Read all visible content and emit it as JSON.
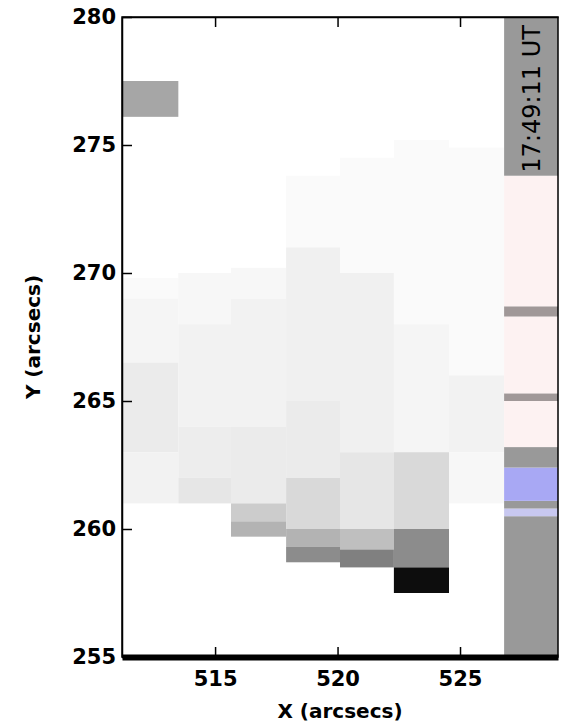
{
  "chart_data": {
    "type": "heatmap",
    "x_label": "X (arcsecs)",
    "y_label": "Y (arcsecs)",
    "xlim": [
      511.2,
      529
    ],
    "ylim": [
      255,
      280
    ],
    "xticks": [
      515,
      520,
      525
    ],
    "yticks": [
      255,
      260,
      265,
      270,
      275,
      280
    ],
    "annotations": [
      {
        "text": "17:49:11 UT"
      }
    ],
    "columns": [
      {
        "x0": 511.2,
        "x1": 513.5,
        "cells": [
          {
            "y0": 276.1,
            "y1": 277.5,
            "value": 0.65
          },
          {
            "y0": 269.0,
            "y1": 269.8,
            "value": 0.98
          },
          {
            "y0": 266.5,
            "y1": 269.0,
            "value": 0.96
          },
          {
            "y0": 263.0,
            "y1": 266.5,
            "value": 0.92
          },
          {
            "y0": 261.0,
            "y1": 263.0,
            "value": 0.95
          }
        ]
      },
      {
        "x0": 513.5,
        "x1": 515.65,
        "cells": [
          {
            "y0": 268.0,
            "y1": 270.0,
            "value": 0.97
          },
          {
            "y0": 264.0,
            "y1": 268.0,
            "value": 0.95
          },
          {
            "y0": 262.0,
            "y1": 264.0,
            "value": 0.93
          },
          {
            "y0": 261.0,
            "y1": 262.0,
            "value": 0.9
          }
        ]
      },
      {
        "x0": 515.65,
        "x1": 517.9,
        "cells": [
          {
            "y0": 269.0,
            "y1": 270.2,
            "value": 0.97
          },
          {
            "y0": 264.0,
            "y1": 269.0,
            "value": 0.95
          },
          {
            "y0": 261.0,
            "y1": 264.0,
            "value": 0.92
          },
          {
            "y0": 260.3,
            "y1": 261.0,
            "value": 0.8
          },
          {
            "y0": 259.7,
            "y1": 260.3,
            "value": 0.7
          }
        ]
      },
      {
        "x0": 517.9,
        "x1": 520.1,
        "cells": [
          {
            "y0": 271.0,
            "y1": 273.8,
            "value": 0.98
          },
          {
            "y0": 265.0,
            "y1": 271.0,
            "value": 0.94
          },
          {
            "y0": 262.0,
            "y1": 265.0,
            "value": 0.92
          },
          {
            "y0": 260.0,
            "y1": 262.0,
            "value": 0.85
          },
          {
            "y0": 259.3,
            "y1": 260.0,
            "value": 0.7
          },
          {
            "y0": 258.7,
            "y1": 259.3,
            "value": 0.55
          }
        ]
      },
      {
        "x0": 520.1,
        "x1": 522.3,
        "cells": [
          {
            "y0": 270.0,
            "y1": 274.5,
            "value": 0.98
          },
          {
            "y0": 263.0,
            "y1": 270.0,
            "value": 0.94
          },
          {
            "y0": 260.0,
            "y1": 263.0,
            "value": 0.9
          },
          {
            "y0": 259.2,
            "y1": 260.0,
            "value": 0.75
          },
          {
            "y0": 258.5,
            "y1": 259.2,
            "value": 0.5
          }
        ]
      },
      {
        "x0": 522.3,
        "x1": 524.55,
        "cells": [
          {
            "y0": 268.0,
            "y1": 275.2,
            "value": 0.98
          },
          {
            "y0": 263.0,
            "y1": 268.0,
            "value": 0.96
          },
          {
            "y0": 260.0,
            "y1": 263.0,
            "value": 0.85
          },
          {
            "y0": 258.5,
            "y1": 260.0,
            "value": 0.55
          },
          {
            "y0": 257.5,
            "y1": 258.5,
            "value": 0.05
          }
        ]
      },
      {
        "x0": 524.55,
        "x1": 526.8,
        "cells": [
          {
            "y0": 266.0,
            "y1": 274.9,
            "value": 0.98
          },
          {
            "y0": 263.0,
            "y1": 266.0,
            "value": 0.95
          },
          {
            "y0": 261.0,
            "y1": 263.0,
            "value": 0.97
          }
        ]
      }
    ],
    "strip": {
      "x0": 526.8,
      "x1": 529,
      "cells": [
        {
          "y0": 255.0,
          "y1": 260.5,
          "color": "#999999"
        },
        {
          "y0": 260.5,
          "y1": 260.8,
          "color": "#c8c8f0"
        },
        {
          "y0": 260.8,
          "y1": 261.1,
          "color": "#999999"
        },
        {
          "y0": 261.1,
          "y1": 262.4,
          "color": "#a8a8f4"
        },
        {
          "y0": 262.4,
          "y1": 263.2,
          "color": "#999999"
        },
        {
          "y0": 263.2,
          "y1": 265.0,
          "color": "#fdf2f2"
        },
        {
          "y0": 265.0,
          "y1": 265.3,
          "color": "#a09898"
        },
        {
          "y0": 265.3,
          "y1": 268.3,
          "color": "#fdf2f2"
        },
        {
          "y0": 268.3,
          "y1": 268.7,
          "color": "#a09898"
        },
        {
          "y0": 268.7,
          "y1": 273.8,
          "color": "#fdf2f2"
        },
        {
          "y0": 273.8,
          "y1": 280.0,
          "color": "#999999"
        }
      ]
    }
  }
}
